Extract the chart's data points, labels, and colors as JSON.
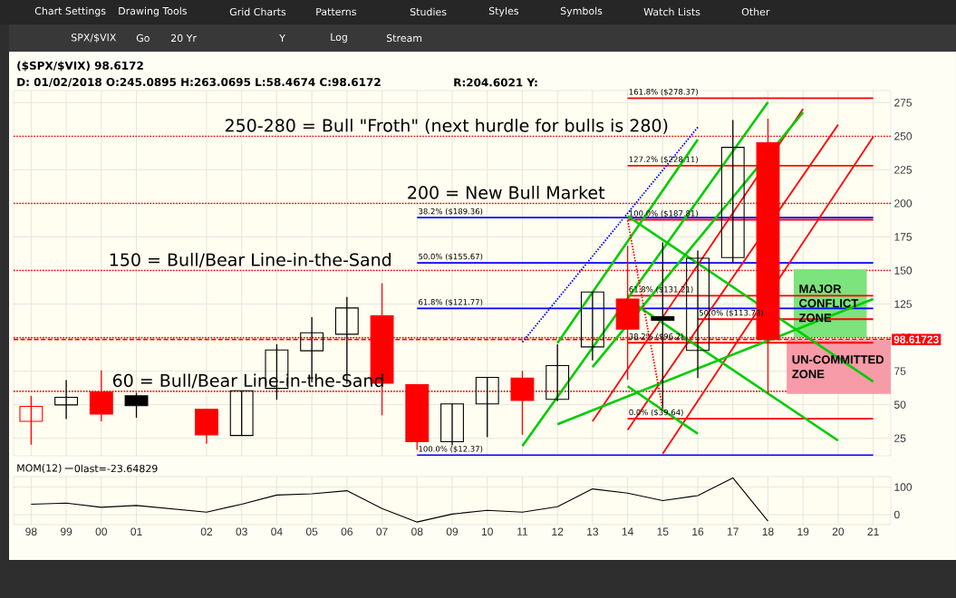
{
  "chart_data": [
    {
      "type": "candlestick",
      "categories": [
        "98",
        "99",
        "00",
        "01",
        null,
        "02",
        "03",
        "04",
        "05",
        "06",
        "07",
        "08",
        "09",
        "10",
        "11",
        "12",
        "13",
        "14",
        "15",
        "16",
        "17",
        "18",
        "19",
        "20",
        "21"
      ],
      "ohlc": [
        [
          37.6,
          56.6,
          20.2,
          48.8
        ],
        [
          49.9,
          68.3,
          39.4,
          55.5
        ],
        [
          59.6,
          75.6,
          37.6,
          43
        ],
        [
          56.6,
          58.9,
          40.3,
          49.3
        ],
        null,
        [
          46.6,
          46.6,
          20.9,
          27.6
        ],
        [
          27.1,
          60.4,
          27.1,
          60.4
        ],
        [
          62.2,
          95.1,
          53.7,
          90.8
        ],
        [
          90.2,
          115.2,
          66.7,
          103.6
        ],
        [
          102.5,
          130.2,
          65.6,
          122.1
        ],
        [
          116.3,
          140.5,
          42.1,
          66
        ],
        [
          64.9,
          64.9,
          16.4,
          22.5
        ],
        [
          22.4,
          50.6,
          19.7,
          50.6
        ],
        [
          50.6,
          70.4,
          25.8,
          70.4
        ],
        [
          69.9,
          75.2,
          27.6,
          53.2
        ],
        [
          54,
          95,
          52.7,
          79.1
        ],
        [
          93.1,
          134,
          83.1,
          134
        ],
        [
          128.8,
          168.4,
          68.6,
          106.3
        ],
        [
          115.6,
          171,
          47.4,
          113
        ],
        [
          90.5,
          164.9,
          69.9,
          159.1
        ],
        [
          159.6,
          262.1,
          155.7,
          241.7
        ],
        [
          245.0895,
          263.0695,
          58.4674,
          98.6172
        ],
        null,
        null,
        null
      ],
      "colors": [
        "#ff0000",
        "#000000",
        "#ff0000",
        "#000000",
        null,
        "#ff0000",
        "#000000",
        "#000000",
        "#000000",
        "#000000",
        "#ff0000",
        "#ff0000",
        "#000000",
        "#000000",
        "#ff0000",
        "#000000",
        "#000000",
        "#ff0000",
        "#000000",
        "#000000",
        "#000000",
        "#ff0000",
        null,
        null,
        null
      ],
      "ylim": [
        12,
        284
      ],
      "yticks": [
        25,
        50,
        75,
        100,
        125,
        150,
        175,
        200,
        225,
        250,
        275
      ],
      "tick_labels": "y",
      "grid": true,
      "ref_lines": [
        {
          "axis": "y",
          "value": 250,
          "label": "250-280 = Bull \"Froth\" (next hurdle for bulls is 280)",
          "color": "#ff0000",
          "line_style": "dotted"
        },
        {
          "axis": "y",
          "value": 200,
          "label": "200 = New Bull Market",
          "color": "#ff0000",
          "line_style": "dotted"
        },
        {
          "axis": "y",
          "value": 150,
          "label": "150 = Bull/Bear Line-in-the-Sand",
          "color": "#ff0000",
          "line_style": "dotted"
        },
        {
          "axis": "y",
          "value": 100,
          "color": "#ff0000",
          "line_style": "dotted"
        },
        {
          "axis": "y",
          "value": 60,
          "label": "60 = Bull/Bear Line-in-the-Sand",
          "color": "#ff0000",
          "line_style": "dotted"
        },
        {
          "axis": "y",
          "value": 98.61723,
          "label": "98.61723",
          "color": "#ff0000",
          "line_style": "dashed"
        }
      ],
      "bands": [
        {
          "axis": "y",
          "from": 100.8,
          "to": 150.4,
          "label": "MAJOR CONFLICT ZONE",
          "color": "#7de37d"
        },
        {
          "axis": "y",
          "from": 58.5,
          "to": 98,
          "label": "UN-COMMITTED ZONE",
          "color": "#f79ba8"
        }
      ],
      "series": [
        {
          "type": "line",
          "x": [
            "08",
            "21"
          ],
          "values": [
            189.36,
            189.36
          ],
          "color": "#0000ff"
        },
        {
          "type": "line",
          "x": [
            "08",
            "21"
          ],
          "values": [
            155.67,
            155.67
          ],
          "color": "#0000ff"
        },
        {
          "type": "line",
          "x": [
            "08",
            "21"
          ],
          "values": [
            121.77,
            121.77
          ],
          "color": "#0000ff"
        },
        {
          "type": "line",
          "x": [
            "08",
            "21"
          ],
          "values": [
            12.37,
            12.37
          ],
          "color": "#0000ff"
        },
        {
          "type": "line",
          "x": [
            "11",
            "16"
          ],
          "values": [
            96.6,
            256.7
          ],
          "color": "#0000ff",
          "line_style": "dotted"
        },
        {
          "type": "line",
          "x": [
            "14",
            "21"
          ],
          "values": [
            278.37,
            278.37
          ],
          "color": "#ff0000"
        },
        {
          "type": "line",
          "x": [
            "14",
            "21"
          ],
          "values": [
            228.11,
            228.11
          ],
          "color": "#ff0000"
        },
        {
          "type": "line",
          "x": [
            "14",
            "21"
          ],
          "values": [
            187.81,
            187.81
          ],
          "color": "#ff0000"
        },
        {
          "type": "line",
          "x": [
            "14",
            "21"
          ],
          "values": [
            131.21,
            131.21
          ],
          "color": "#ff0000"
        },
        {
          "type": "line",
          "x": [
            "16",
            "21"
          ],
          "values": [
            113.73,
            113.73
          ],
          "color": "#ff0000"
        },
        {
          "type": "line",
          "x": [
            "14",
            "21"
          ],
          "values": [
            96.2,
            96.2
          ],
          "color": "#ff0000"
        },
        {
          "type": "line",
          "x": [
            "14",
            "21"
          ],
          "values": [
            39.64,
            39.64
          ],
          "color": "#ff0000"
        },
        {
          "type": "line",
          "x": [
            "14",
            "15"
          ],
          "values": [
            187.4,
            46.9
          ],
          "color": "#ff0000",
          "line_style": "dotted"
        },
        {
          "type": "line",
          "x": [
            "13",
            "19"
          ],
          "values": [
            37.7,
            270.4
          ],
          "color": "#ff0000"
        },
        {
          "type": "line",
          "x": [
            "14",
            "20"
          ],
          "values": [
            31.3,
            258.6
          ],
          "color": "#ff0000"
        },
        {
          "type": "line",
          "x": [
            "15",
            "21"
          ],
          "values": [
            13.5,
            249.5
          ],
          "color": "#ff0000"
        },
        {
          "type": "line",
          "x": [
            "12",
            "16"
          ],
          "values": [
            95.8,
            247.5
          ],
          "color": "#00cc00"
        },
        {
          "type": "line",
          "x": [
            "11",
            "18"
          ],
          "values": [
            19.3,
            275.4
          ],
          "color": "#00cc00"
        },
        {
          "type": "line",
          "x": [
            "13",
            "19"
          ],
          "values": [
            78,
            267.8
          ],
          "color": "#00cc00"
        },
        {
          "type": "line",
          "x": [
            "14",
            "21"
          ],
          "values": [
            190.5,
            67.3
          ],
          "color": "#00cc00"
        },
        {
          "type": "line",
          "x": [
            "14",
            "20"
          ],
          "values": [
            128.5,
            23.3
          ],
          "color": "#00cc00"
        },
        {
          "type": "line",
          "x": [
            "14",
            "16"
          ],
          "values": [
            63.8,
            28.4
          ],
          "color": "#00cc00"
        },
        {
          "type": "line",
          "x": [
            "12",
            "21"
          ],
          "values": [
            35.5,
            128.8
          ],
          "color": "#00cc00"
        }
      ],
      "annotations": [
        "Chart Settings",
        "Drawing Tools",
        "Grid Charts",
        "Patterns",
        "Studies",
        "Styles",
        "Symbols",
        "Watch Lists",
        "Other",
        "SPX/$VIX",
        "Go",
        "20 Yr",
        "Y",
        "Log",
        "Stream",
        "($SPX/$VIX)  98.6172",
        "D: 01/02/2018 O:245.0895 H:263.0695 L:58.4674 C:98.6172",
        "R:204.6021 Y:",
        {
          "text": "161.8% ($278.37)",
          "x": "14",
          "y": 278.37
        },
        {
          "text": "127.2% ($228.11)",
          "x": "14",
          "y": 228.11
        },
        {
          "text": "100.0% ($187.81)",
          "x": "14",
          "y": 187.81
        },
        {
          "text": "61.8% ($131.21)",
          "x": "14",
          "y": 131.21
        },
        {
          "text": "50.0% ($113.73)",
          "x": "16",
          "y": 113.73
        },
        {
          "text": "38.2% ($96.2)",
          "x": "14",
          "y": 96.2
        },
        {
          "text": "0.0% ($39.64)",
          "x": "14",
          "y": 39.64
        },
        {
          "text": "38.2% ($189.36)",
          "x": "08",
          "y": 189.36
        },
        {
          "text": "50.0% ($155.67)",
          "x": "08",
          "y": 155.67
        },
        {
          "text": "61.8% ($121.77)",
          "x": "08",
          "y": 121.77
        },
        {
          "text": "100.0% ($12.37)",
          "x": "08",
          "y": 12.37
        }
      ]
    },
    {
      "type": "line",
      "title": "MOM(12)",
      "annotations": [
        "0last=-23.64829"
      ],
      "categories": [
        "98",
        "99",
        "00",
        "01",
        null,
        "02",
        "03",
        "04",
        "05",
        "06",
        "07",
        "08",
        "09",
        "10",
        "11",
        "12",
        "13",
        "14",
        "15",
        "16",
        "17",
        "18",
        "19",
        "20",
        "21"
      ],
      "values": [
        37.8,
        42,
        26.7,
        33.3,
        null,
        8.9,
        37.8,
        71,
        75.6,
        86.7,
        22.2,
        -26.7,
        2.2,
        15.6,
        8.9,
        28.9,
        93.3,
        77.8,
        51.1,
        68.9,
        133.3,
        -23.64829,
        null,
        null,
        null
      ],
      "color": "#000000",
      "ylim": [
        -36,
        138
      ],
      "yticks": [
        0,
        100
      ],
      "grid": true
    }
  ]
}
